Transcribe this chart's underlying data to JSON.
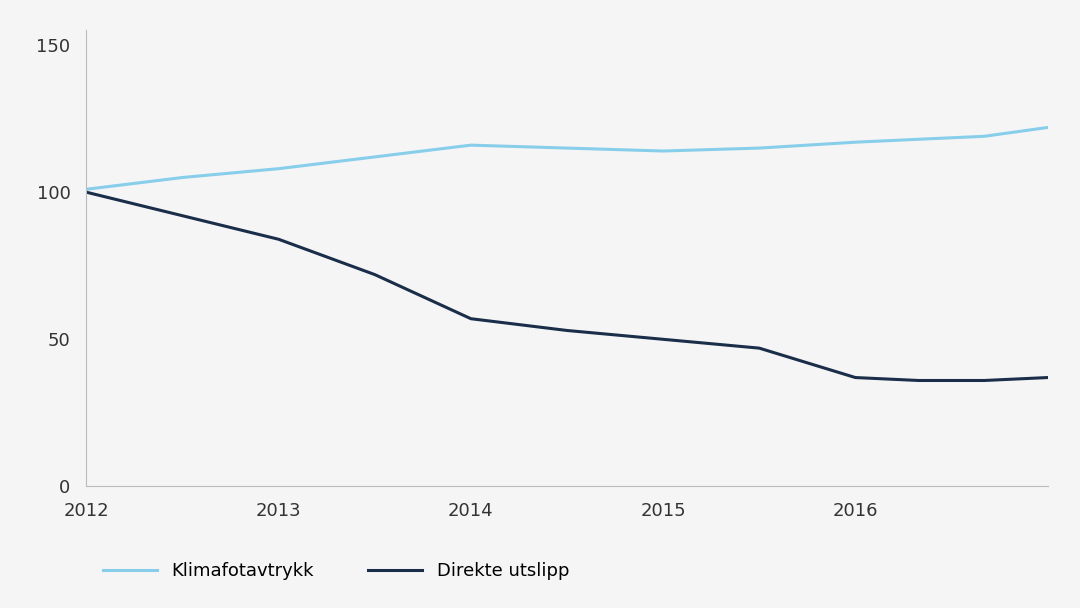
{
  "x_years": [
    2012,
    2012.5,
    2013,
    2013.5,
    2014,
    2014.5,
    2015,
    2015.5,
    2016,
    2016.33,
    2016.67,
    2017
  ],
  "klimafotavtrykk": [
    101,
    105,
    108,
    112,
    116,
    115,
    114,
    115,
    117,
    118,
    119,
    122
  ],
  "direkte_utslipp": [
    100,
    92,
    84,
    72,
    57,
    53,
    50,
    47,
    37,
    36,
    36,
    37
  ],
  "klimafotavtrykk_color": "#87CEEB",
  "direkte_utslipp_color": "#1a2e4a",
  "background_color": "#f5f5f5",
  "ylim": [
    0,
    155
  ],
  "yticks": [
    0,
    50,
    100,
    150
  ],
  "xlim": [
    2012,
    2017
  ],
  "xticks": [
    2012,
    2013,
    2014,
    2015,
    2016
  ],
  "legend_klimafotavtrykk": "Klimafotavtrykk",
  "legend_direkte": "Direkte utslipp",
  "line_width": 2.2,
  "tick_fontsize": 13,
  "tick_color": "#333333"
}
